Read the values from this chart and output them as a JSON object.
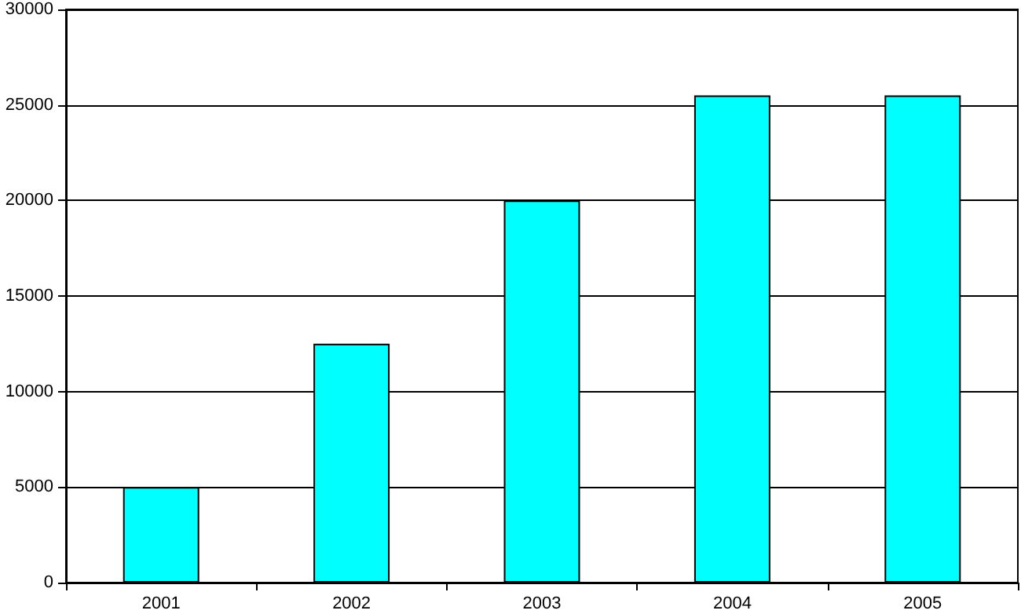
{
  "chart_data": {
    "type": "bar",
    "categories": [
      "2001",
      "2002",
      "2003",
      "2004",
      "2005"
    ],
    "values": [
      5000,
      12500,
      20000,
      25500,
      25500
    ],
    "color": "#00ffff",
    "ylim": [
      0,
      30000
    ],
    "yticks": [
      0,
      5000,
      10000,
      15000,
      20000,
      25000,
      30000
    ],
    "grid": "y"
  }
}
